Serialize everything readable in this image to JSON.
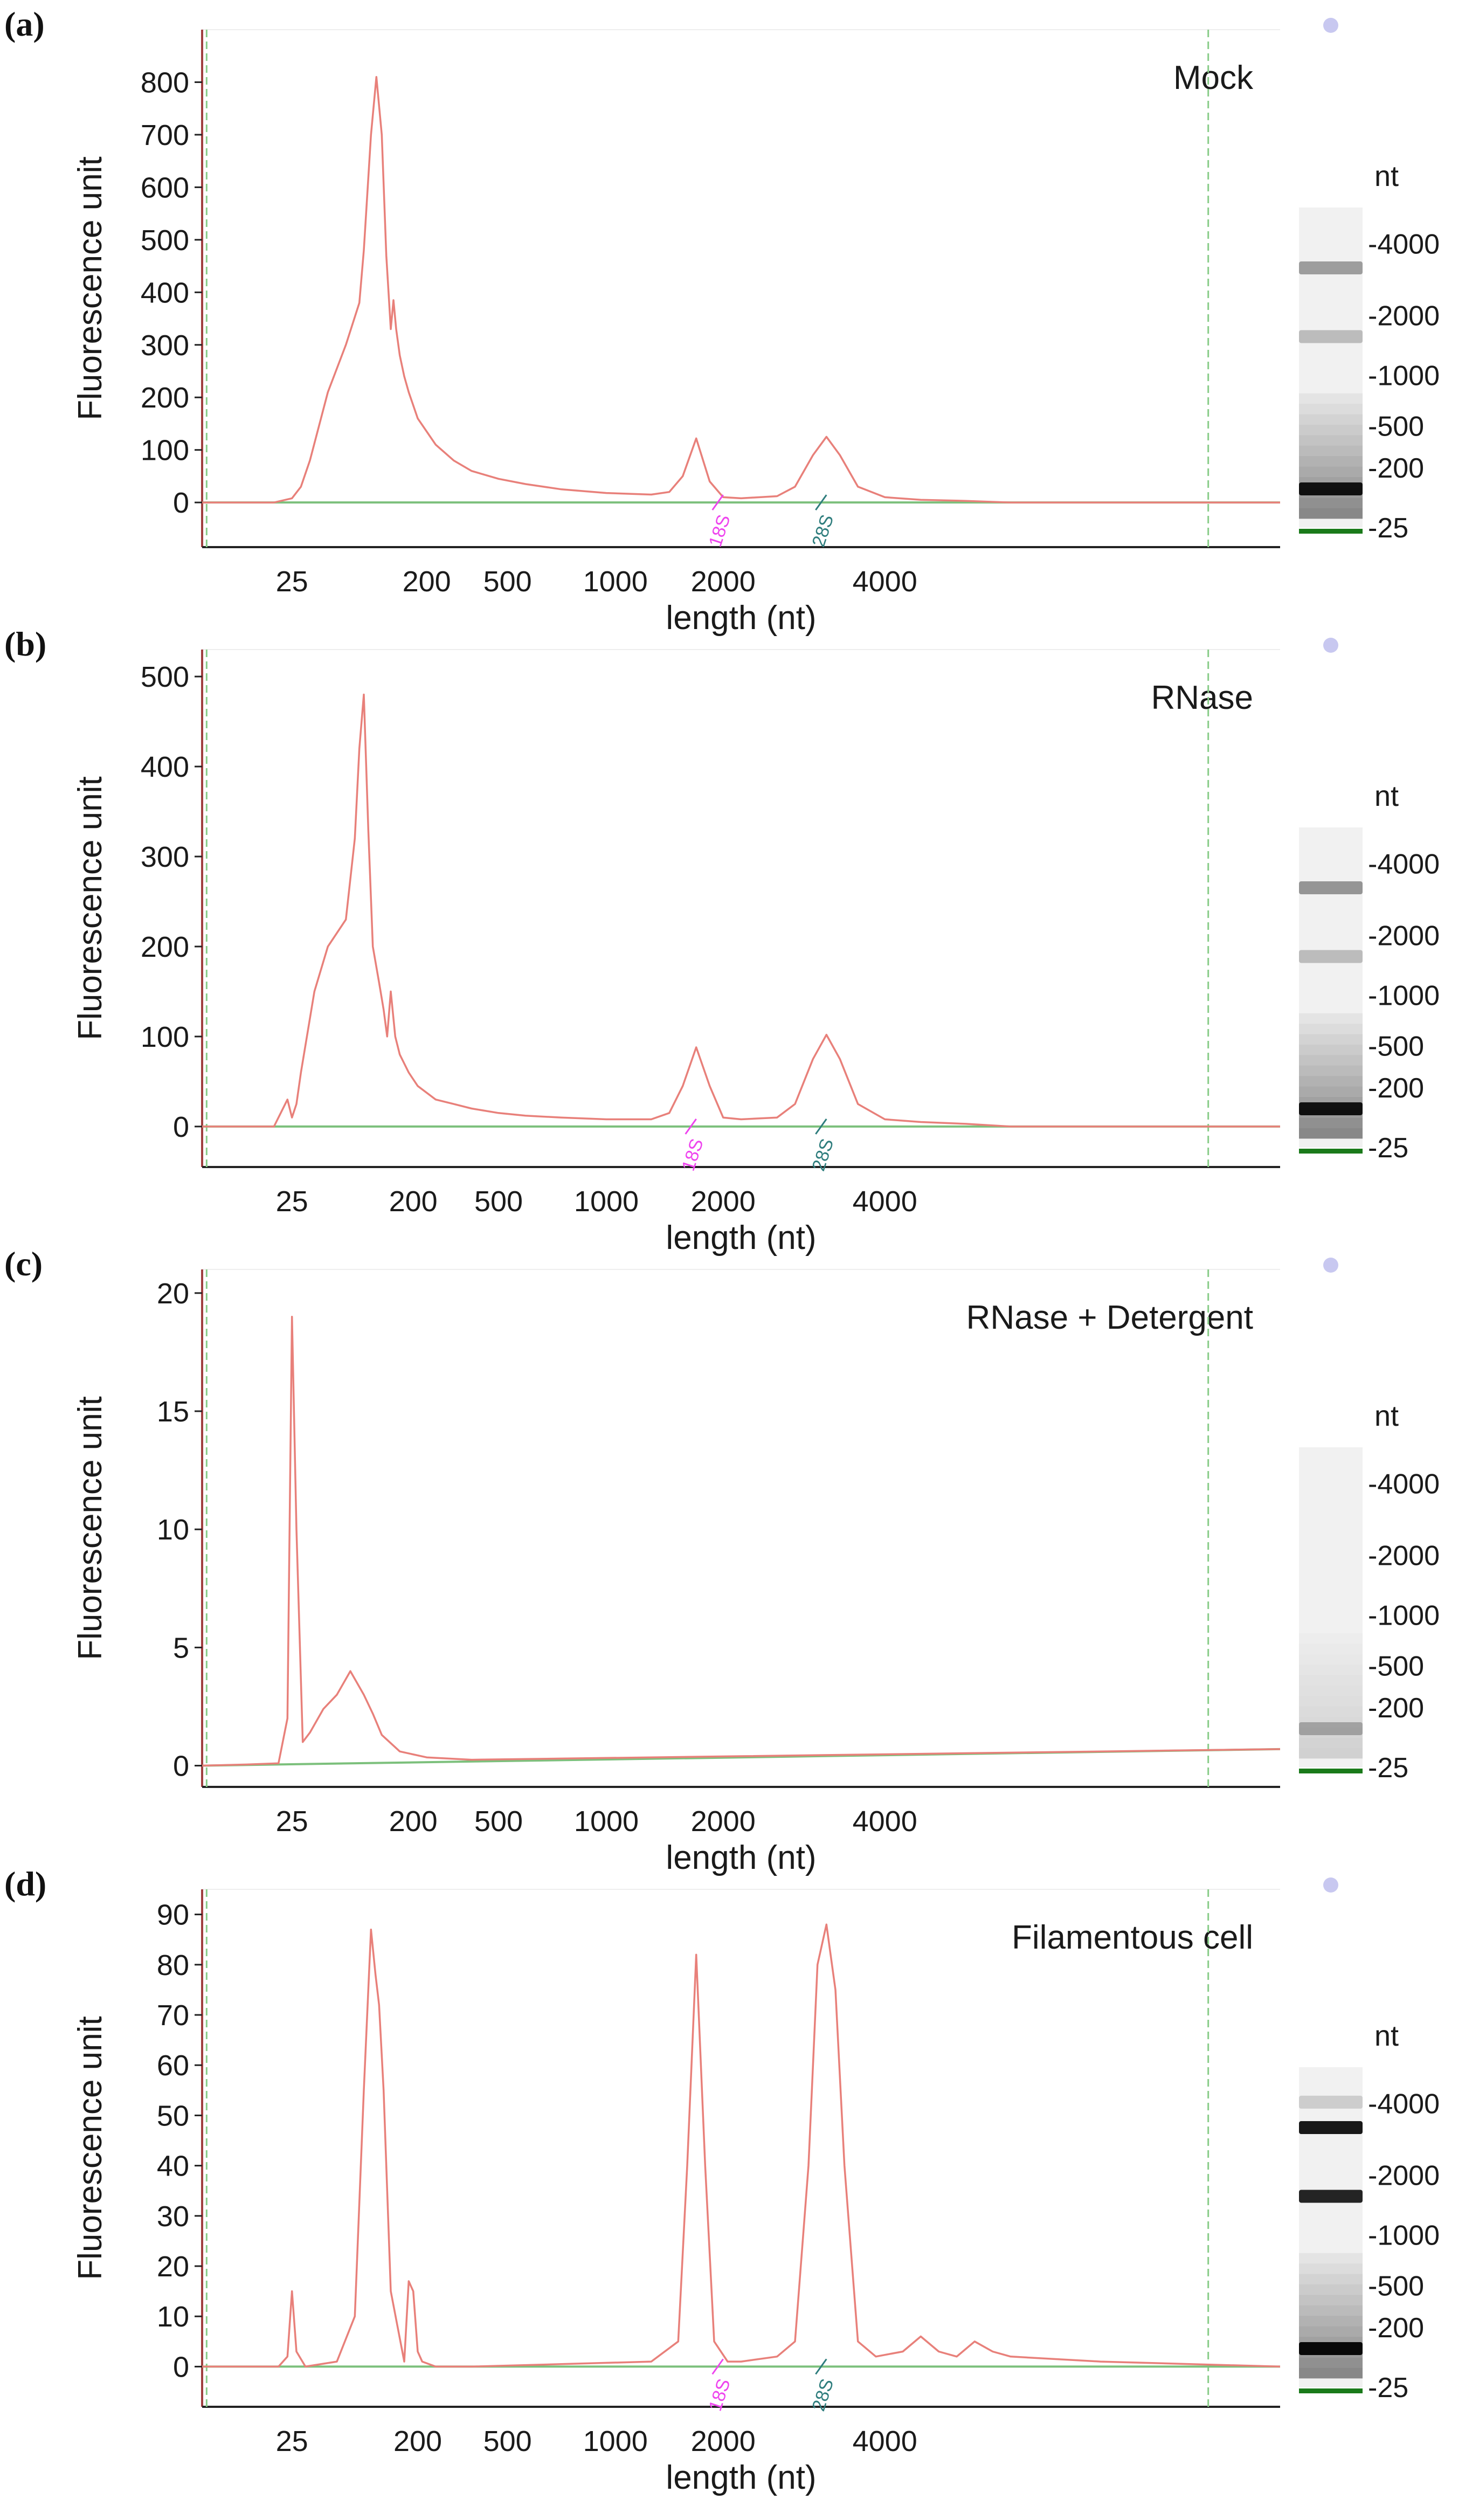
{
  "figure": {
    "colors": {
      "trace": "#e8807a",
      "baseline": "#7cc07c",
      "marker_dash": "#88cc88",
      "axis": "#222222",
      "axis_left": "#a04040",
      "label_18s": "#ee44ee",
      "label_28s": "#2e7d7d",
      "gel_marker": "#1a7a1a",
      "well_dot": "#c8c8f0"
    }
  },
  "chart_data": [
    {
      "type": "line",
      "panel_label": "(a)",
      "title": "Mock",
      "xlabel": "length (nt)",
      "ylabel": "Fluorescence unit",
      "xlim": [
        -1,
        11
      ],
      "ylim": [
        -85,
        900
      ],
      "yticks": [
        0,
        100,
        200,
        300,
        400,
        500,
        600,
        700,
        800
      ],
      "xtick_labels": [
        {
          "label": "25",
          "pos": 0.0
        },
        {
          "label": "200",
          "pos": 1.5
        },
        {
          "label": "500",
          "pos": 2.4
        },
        {
          "label": "1000",
          "pos": 3.6
        },
        {
          "label": "2000",
          "pos": 4.8
        },
        {
          "label": "4000",
          "pos": 6.6
        }
      ],
      "marker_dashes": [
        -0.95,
        10.2
      ],
      "rrna_labels": [
        {
          "label": "18S",
          "pos": 4.8
        },
        {
          "label": "28S",
          "pos": 5.95
        }
      ],
      "series": [
        {
          "name": "Mock",
          "x": [
            -2,
            -0.2,
            0.0,
            0.1,
            0.2,
            0.4,
            0.6,
            0.75,
            0.8,
            0.88,
            0.94,
            1.0,
            1.05,
            1.1,
            1.13,
            1.16,
            1.2,
            1.25,
            1.3,
            1.4,
            1.6,
            1.8,
            2.0,
            2.3,
            2.6,
            3.0,
            3.5,
            4.0,
            4.2,
            4.35,
            4.5,
            4.65,
            4.8,
            5.0,
            5.4,
            5.6,
            5.8,
            5.95,
            6.1,
            6.3,
            6.6,
            7.0,
            7.5,
            8,
            11
          ],
          "y": [
            0,
            0,
            8,
            30,
            80,
            210,
            300,
            380,
            480,
            700,
            810,
            700,
            470,
            330,
            385,
            330,
            280,
            240,
            210,
            160,
            110,
            80,
            60,
            45,
            35,
            25,
            18,
            15,
            20,
            50,
            122,
            40,
            10,
            8,
            12,
            30,
            90,
            125,
            90,
            30,
            10,
            5,
            3,
            0,
            0
          ]
        }
      ],
      "baseline": {
        "name": "Baseline",
        "x": [
          -2,
          11
        ],
        "y": [
          0,
          0
        ]
      },
      "lane": {
        "unit": "nt",
        "sizes": [
          "4000",
          "2000",
          "1000",
          "500",
          "200",
          "25"
        ],
        "bands": [
          {
            "pos": 0.13,
            "intensity": 0.35
          },
          {
            "pos": 0.36,
            "intensity": 0.22
          },
          {
            "pos": 0.87,
            "intensity": 0.9
          }
        ]
      }
    },
    {
      "type": "line",
      "panel_label": "(b)",
      "title": "RNase",
      "xlabel": "length (nt)",
      "ylabel": "Fluorescence unit",
      "xlim": [
        -1,
        11
      ],
      "ylim": [
        -45,
        530
      ],
      "yticks": [
        0,
        100,
        200,
        300,
        400,
        500
      ],
      "xtick_labels": [
        {
          "label": "25",
          "pos": 0.0
        },
        {
          "label": "200",
          "pos": 1.35
        },
        {
          "label": "500",
          "pos": 2.3
        },
        {
          "label": "1000",
          "pos": 3.5
        },
        {
          "label": "2000",
          "pos": 4.8
        },
        {
          "label": "4000",
          "pos": 6.6
        }
      ],
      "marker_dashes": [
        -0.95,
        10.2
      ],
      "rrna_labels": [
        {
          "label": "18S",
          "pos": 4.5
        },
        {
          "label": "28S",
          "pos": 5.95
        }
      ],
      "series": [
        {
          "name": "RNase",
          "x": [
            -2,
            -0.2,
            -0.05,
            0.0,
            0.05,
            0.1,
            0.25,
            0.4,
            0.6,
            0.7,
            0.75,
            0.8,
            0.85,
            0.9,
            0.97,
            1.02,
            1.06,
            1.1,
            1.15,
            1.2,
            1.25,
            1.3,
            1.4,
            1.6,
            1.8,
            2.0,
            2.3,
            2.6,
            3.0,
            3.5,
            4.0,
            4.2,
            4.35,
            4.5,
            4.65,
            4.8,
            5.0,
            5.4,
            5.6,
            5.8,
            5.95,
            6.1,
            6.3,
            6.6,
            7.0,
            7.5,
            8,
            11
          ],
          "y": [
            0,
            0,
            30,
            10,
            25,
            60,
            150,
            200,
            230,
            320,
            420,
            480,
            330,
            200,
            160,
            130,
            100,
            150,
            100,
            80,
            70,
            60,
            45,
            30,
            25,
            20,
            15,
            12,
            10,
            8,
            8,
            15,
            45,
            88,
            45,
            10,
            8,
            10,
            25,
            75,
            102,
            75,
            25,
            8,
            5,
            3,
            0,
            0
          ]
        }
      ],
      "baseline": {
        "name": "Baseline",
        "x": [
          -2,
          11
        ],
        "y": [
          0,
          0
        ]
      },
      "lane": {
        "unit": "nt",
        "sizes": [
          "4000",
          "2000",
          "1000",
          "500",
          "200",
          "25"
        ],
        "bands": [
          {
            "pos": 0.13,
            "intensity": 0.38
          },
          {
            "pos": 0.36,
            "intensity": 0.22
          },
          {
            "pos": 0.87,
            "intensity": 0.9
          }
        ]
      }
    },
    {
      "type": "line",
      "panel_label": "(c)",
      "title": "RNase + Detergent",
      "xlabel": "length (nt)",
      "ylabel": "Fluorescence unit",
      "xlim": [
        -1,
        11
      ],
      "ylim": [
        -0.9,
        21
      ],
      "yticks": [
        0,
        5,
        10,
        15,
        20
      ],
      "xtick_labels": [
        {
          "label": "25",
          "pos": 0.0
        },
        {
          "label": "200",
          "pos": 1.35
        },
        {
          "label": "500",
          "pos": 2.3
        },
        {
          "label": "1000",
          "pos": 3.5
        },
        {
          "label": "2000",
          "pos": 4.8
        },
        {
          "label": "4000",
          "pos": 6.6
        }
      ],
      "marker_dashes": [
        -0.95,
        10.2
      ],
      "rrna_labels": [],
      "series": [
        {
          "name": "RNase + Detergent",
          "x": [
            -2,
            -1.0,
            -0.5,
            -0.15,
            -0.05,
            0.0,
            0.05,
            0.12,
            0.2,
            0.35,
            0.5,
            0.65,
            0.8,
            0.9,
            1.0,
            1.2,
            1.5,
            2.0,
            3.0,
            5.0,
            7.0,
            9.0,
            11.0
          ],
          "y": [
            0.0,
            0.0,
            0.05,
            0.1,
            2.0,
            19.0,
            10.0,
            1.0,
            1.4,
            2.4,
            3.0,
            4.0,
            3.0,
            2.2,
            1.3,
            0.6,
            0.35,
            0.25,
            0.3,
            0.4,
            0.5,
            0.6,
            0.7
          ]
        }
      ],
      "baseline": {
        "name": "Baseline",
        "x": [
          -2,
          11
        ],
        "y": [
          0.0,
          0.7
        ]
      },
      "lane": {
        "unit": "nt",
        "sizes": [
          "4000",
          "2000",
          "1000",
          "500",
          "200",
          "25"
        ],
        "bands": [
          {
            "pos": 0.87,
            "intensity": 0.25
          }
        ]
      }
    },
    {
      "type": "line",
      "panel_label": "(d)",
      "title": "Filamentous cell",
      "xlabel": "length (nt)",
      "ylabel": "Fluorescence unit",
      "xlim": [
        -1,
        11
      ],
      "ylim": [
        -8,
        95
      ],
      "yticks": [
        0,
        10,
        20,
        30,
        40,
        50,
        60,
        70,
        80,
        90
      ],
      "xtick_labels": [
        {
          "label": "25",
          "pos": 0.0
        },
        {
          "label": "200",
          "pos": 1.4
        },
        {
          "label": "500",
          "pos": 2.4
        },
        {
          "label": "1000",
          "pos": 3.6
        },
        {
          "label": "2000",
          "pos": 4.8
        },
        {
          "label": "4000",
          "pos": 6.6
        }
      ],
      "marker_dashes": [
        -0.95,
        10.2
      ],
      "rrna_labels": [
        {
          "label": "18S",
          "pos": 4.8
        },
        {
          "label": "28S",
          "pos": 5.95
        }
      ],
      "series": [
        {
          "name": "Filamentous cell",
          "x": [
            -2,
            -0.15,
            -0.05,
            0.0,
            0.05,
            0.15,
            0.5,
            0.7,
            0.8,
            0.88,
            0.93,
            0.97,
            1.02,
            1.1,
            1.25,
            1.3,
            1.35,
            1.4,
            1.45,
            1.6,
            2.0,
            3.0,
            4.0,
            4.3,
            4.4,
            4.5,
            4.6,
            4.7,
            4.85,
            5.0,
            5.4,
            5.6,
            5.75,
            5.85,
            5.95,
            6.05,
            6.15,
            6.3,
            6.5,
            6.8,
            7.0,
            7.2,
            7.4,
            7.6,
            7.8,
            8.0,
            9.0,
            11.0
          ],
          "y": [
            0,
            0,
            2,
            15,
            3,
            0,
            1,
            10,
            55,
            87,
            78,
            72,
            55,
            15,
            1,
            17,
            15,
            3,
            1,
            0,
            0,
            0.5,
            1,
            5,
            40,
            82,
            40,
            5,
            1,
            1,
            2,
            5,
            40,
            80,
            88,
            75,
            40,
            5,
            2,
            3,
            6,
            3,
            2,
            5,
            3,
            2,
            1,
            0
          ]
        }
      ],
      "baseline": {
        "name": "Baseline",
        "x": [
          -2,
          11
        ],
        "y": [
          0,
          0
        ]
      },
      "lane": {
        "unit": "nt",
        "sizes": [
          "4000",
          "2000",
          "1000",
          "500",
          "200",
          "25"
        ],
        "bands": [
          {
            "pos": 0.045,
            "intensity": 0.15
          },
          {
            "pos": 0.13,
            "intensity": 0.9
          },
          {
            "pos": 0.36,
            "intensity": 0.85
          },
          {
            "pos": 0.87,
            "intensity": 0.95
          }
        ]
      }
    }
  ]
}
